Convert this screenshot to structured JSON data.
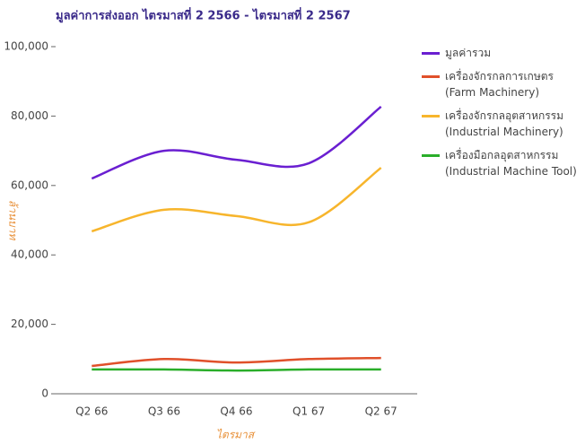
{
  "chart_data": {
    "type": "line",
    "title": "มูลค่าการส่งออก ไตรมาสที่ 2 2566 - ไตรมาสที่ 2 2567",
    "x_label": "ไตรมาส",
    "y_label": "ล้านบาท",
    "categories": [
      "Q2 66",
      "Q3 66",
      "Q4 66",
      "Q1 67",
      "Q2 67"
    ],
    "series": [
      {
        "name": "มูลค่ารวม",
        "color": "#6a1fd1",
        "values": [
          62000,
          70000,
          67400,
          66400,
          82700
        ]
      },
      {
        "name": "เครื่องจักรกลการเกษตร (Farm Machinery)",
        "color": "#e0502a",
        "values": [
          8000,
          10000,
          9000,
          10000,
          10300
        ]
      },
      {
        "name": "เครื่องจักรกลอุตสาหกรรม (Industrial Machinery)",
        "color": "#f7b52c",
        "values": [
          46800,
          53000,
          51200,
          49400,
          65100
        ]
      },
      {
        "name": "เครื่องมือกลอุตสาหกรรม (Industrial Machine Tool)",
        "color": "#2aae2a",
        "values": [
          7000,
          7000,
          6700,
          7000,
          7000
        ]
      }
    ],
    "ylim": [
      0,
      100000
    ],
    "yticks": [
      0,
      {
        "value": 20000,
        "label": "20,000"
      },
      {
        "value": 40000,
        "label": "40,000"
      },
      {
        "value": 60000,
        "label": "60,000"
      },
      {
        "value": 80000,
        "label": "80,000"
      },
      {
        "value": 100000,
        "label": "100,000"
      }
    ],
    "grid": false,
    "legend": "right"
  }
}
